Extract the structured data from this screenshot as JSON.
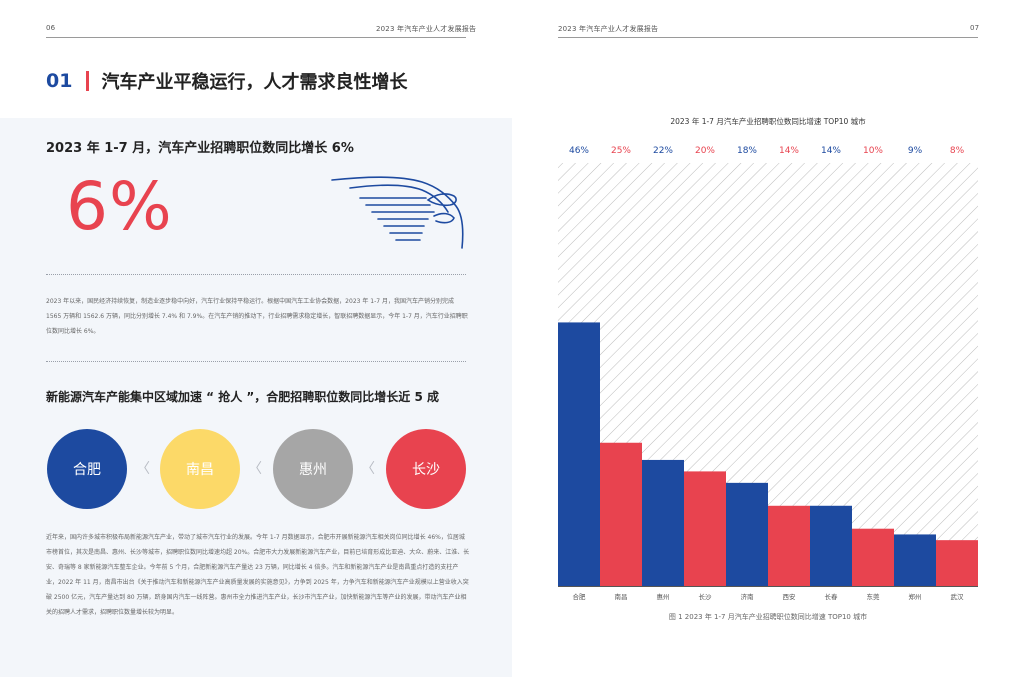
{
  "header": {
    "left_page_no": "06",
    "left_title": "2023 年汽车产业人才发展报告",
    "right_title": "2023 年汽车产业人才发展报告",
    "right_page_no": "07"
  },
  "section": {
    "number": "01",
    "title": "汽车产业平稳运行，人才需求良性增长"
  },
  "highlight": {
    "subtitle": "2023 年 1-7 月，汽车产业招聘职位数同比增长 6%",
    "big_value": "6%"
  },
  "paragraph1": "2023 年以来，国民经济持续恢复，制造业逐步稳中向好，汽车行业保持平稳运行。根据中国汽车工业协会数据，2023 年 1-7 月，我国汽车产销分别完成 1565 万辆和 1562.6 万辆，同比分别增长 7.4% 和 7.9%。在汽车产销的推动下，行业招聘需求稳定增长，智联招聘数据显示，今年 1-7 月，汽车行业招聘职位数同比增长 6%。",
  "subtitle2": "新能源汽车产能集中区域加速 “ 抢人 ”，合肥招聘职位数同比增长近 5 成",
  "cities": [
    {
      "name": "合肥",
      "color": "#1d4aa0"
    },
    {
      "name": "南昌",
      "color": "#fcd968"
    },
    {
      "name": "惠州",
      "color": "#a6a6a6"
    },
    {
      "name": "长沙",
      "color": "#e8434f"
    }
  ],
  "paragraph2": "近年来，国内许多城市积极布局新能源汽车产业，带动了城市汽车行业的发展。今年 1-7 月数据显示，合肥市开展新能源汽车相关岗位同比增长 46%，位居城市榜首位，其次是南昌、惠州、长沙等城市，招聘职位数同比增速均超 20%。合肥市大力发展新能源汽车产业，目前已培育形成比亚迪、大众、蔚来、江淮、长安、奇瑞等 8 家新能源汽车整车企业。今年前 5 个月，合肥新能源汽车产量达 23 万辆，同比增长 4 倍多。汽车和新能源汽车产业是南昌重点打造的支柱产业，2022 年 11 月，南昌市出台《关于推动汽车和新能源汽车产业高质量发展的实施意见》，力争到 2025 年，力争汽车和新能源汽车产业规模以上营业收入突破 2500 亿元，汽车产量达到 80 万辆，跻身国内汽车一线阵营。惠州市全力推进汽车产业，长沙市汽车产业，加快新能源汽车等产业的发展，带动汽车产业相关的招聘人才需求，招聘职位数量增长较为明显。",
  "chart_data": {
    "type": "bar",
    "title": "2023 年 1-7 月汽车产业招聘职位数同比增速 TOP10 城市",
    "categories": [
      "合肥",
      "南昌",
      "惠州",
      "长沙",
      "济南",
      "西安",
      "长春",
      "东莞",
      "郑州",
      "武汉"
    ],
    "values": [
      46,
      25,
      22,
      20,
      18,
      14,
      14,
      10,
      9,
      8
    ],
    "value_labels": [
      "46%",
      "25%",
      "22%",
      "20%",
      "18%",
      "14%",
      "14%",
      "10%",
      "9%",
      "8%"
    ],
    "colors": [
      "#1d4aa0",
      "#e8434f",
      "#1d4aa0",
      "#e8434f",
      "#1d4aa0",
      "#e8434f",
      "#1d4aa0",
      "#e8434f",
      "#1d4aa0",
      "#e8434f"
    ],
    "ylim": [
      0,
      100
    ],
    "grid": false,
    "legend": "none"
  },
  "caption": "图 1 2023 年 1-7 月汽车产业招聘职位数同比增速 TOP10 城市"
}
